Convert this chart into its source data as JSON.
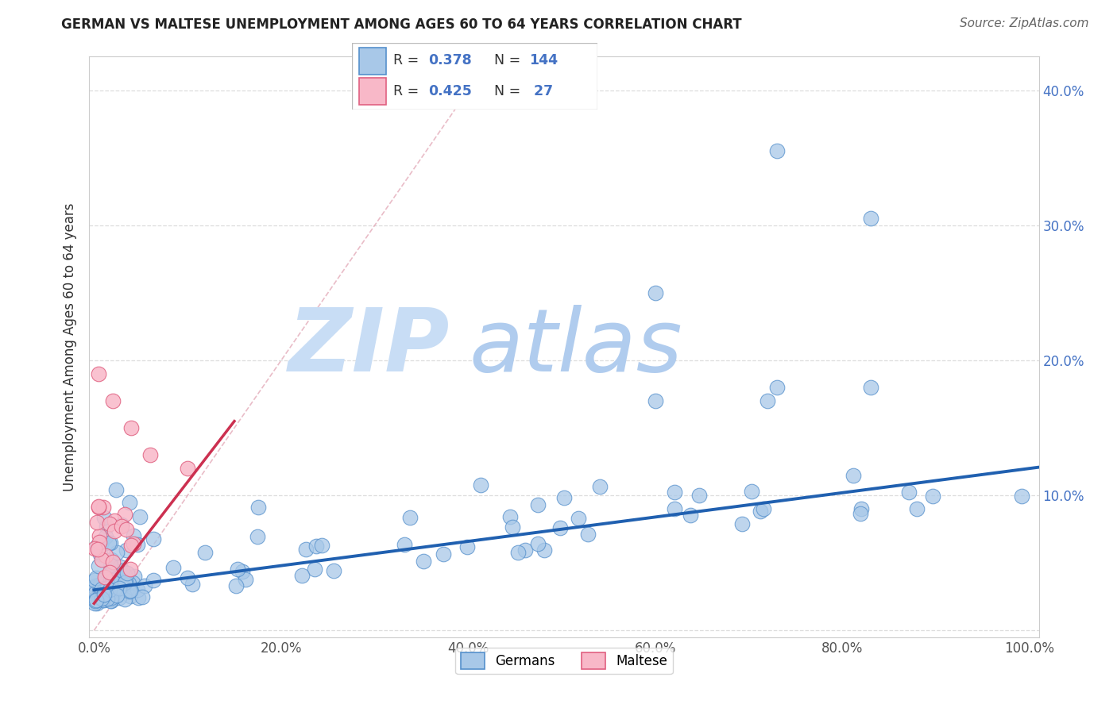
{
  "title": "GERMAN VS MALTESE UNEMPLOYMENT AMONG AGES 60 TO 64 YEARS CORRELATION CHART",
  "source": "Source: ZipAtlas.com",
  "ylabel": "Unemployment Among Ages 60 to 64 years",
  "xlim": [
    -0.005,
    1.01
  ],
  "ylim": [
    -0.005,
    0.425
  ],
  "xticks": [
    0.0,
    0.2,
    0.4,
    0.6,
    0.8,
    1.0
  ],
  "yticks": [
    0.0,
    0.1,
    0.2,
    0.3,
    0.4
  ],
  "xtick_labels": [
    "0.0%",
    "20.0%",
    "40.0%",
    "60.0%",
    "80.0%",
    "100.0%"
  ],
  "ytick_labels_right": [
    "",
    "10.0%",
    "20.0%",
    "30.0%",
    "40.0%"
  ],
  "german_color": "#a8c8e8",
  "german_edge_color": "#5590cc",
  "maltese_color": "#f8b8c8",
  "maltese_edge_color": "#e06080",
  "regression_german_color": "#2060b0",
  "regression_maltese_color": "#cc3050",
  "R_german": 0.378,
  "N_german": 144,
  "R_maltese": 0.425,
  "N_maltese": 27,
  "legend_R_color": "#2060b0",
  "legend_N_color": "#2060b0",
  "watermark_zip_color": "#ddeeff",
  "watermark_atlas_color": "#c8ddf0",
  "grid_color": "#dddddd",
  "title_color": "#222222",
  "source_color": "#666666",
  "ylabel_color": "#333333"
}
